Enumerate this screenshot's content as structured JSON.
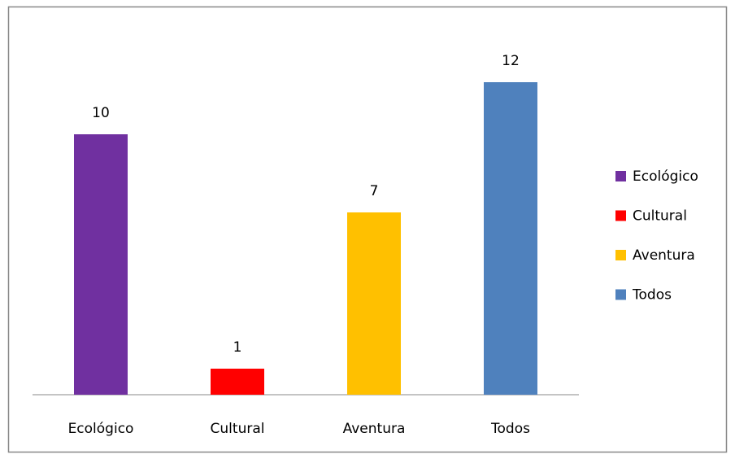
{
  "chart_data": {
    "type": "bar",
    "categories": [
      "Ecológico",
      "Cultural",
      "Aventura",
      "Todos"
    ],
    "values": [
      10,
      1,
      7,
      12
    ],
    "colors": [
      "#7030a0",
      "#ff0000",
      "#ffc000",
      "#4f81bd"
    ],
    "legend": "right"
  }
}
